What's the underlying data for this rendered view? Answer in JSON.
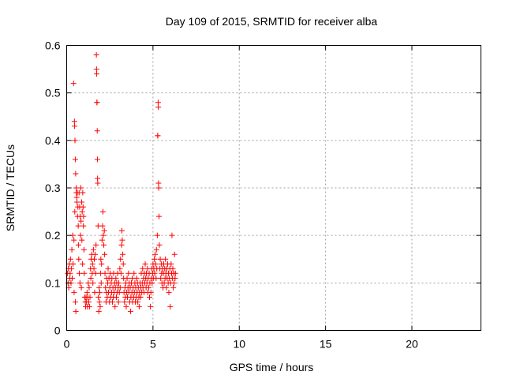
{
  "chart_data": {
    "type": "scatter",
    "title": "Day 109 of 2015, SRMTID for receiver alba",
    "xlabel": "GPS time / hours",
    "ylabel": "SRMTID / TECUs",
    "xlim": [
      0,
      24
    ],
    "ylim": [
      0,
      0.6
    ],
    "xticks": [
      0,
      5,
      10,
      15,
      20
    ],
    "xtick_labels": [
      "0",
      "5",
      "10",
      "15",
      "20"
    ],
    "yticks": [
      0,
      0.1,
      0.2,
      0.3,
      0.4,
      0.5,
      0.6
    ],
    "ytick_labels": [
      "0",
      "0.1",
      "0.2",
      "0.3",
      "0.4",
      "0.5",
      "0.6"
    ],
    "grid": true,
    "marker": "+",
    "marker_color": "#ff0000",
    "series": [
      {
        "name": "SRMTID",
        "points": [
          [
            0.05,
            0.12
          ],
          [
            0.08,
            0.1
          ],
          [
            0.1,
            0.13
          ],
          [
            0.12,
            0.09
          ],
          [
            0.15,
            0.14
          ],
          [
            0.18,
            0.11
          ],
          [
            0.2,
            0.12
          ],
          [
            0.22,
            0.15
          ],
          [
            0.25,
            0.1
          ],
          [
            0.28,
            0.13
          ],
          [
            0.3,
            0.17
          ],
          [
            0.32,
            0.11
          ],
          [
            0.35,
            0.2
          ],
          [
            0.37,
            0.14
          ],
          [
            0.4,
            0.52
          ],
          [
            0.42,
            0.19
          ],
          [
            0.43,
            0.08
          ],
          [
            0.45,
            0.44
          ],
          [
            0.46,
            0.43
          ],
          [
            0.47,
            0.25
          ],
          [
            0.48,
            0.4
          ],
          [
            0.5,
            0.36
          ],
          [
            0.5,
            0.06
          ],
          [
            0.52,
            0.33
          ],
          [
            0.53,
            0.04
          ],
          [
            0.55,
            0.3
          ],
          [
            0.56,
            0.29
          ],
          [
            0.58,
            0.28
          ],
          [
            0.6,
            0.27
          ],
          [
            0.62,
            0.29
          ],
          [
            0.63,
            0.24
          ],
          [
            0.65,
            0.26
          ],
          [
            0.67,
            0.22
          ],
          [
            0.68,
            0.18
          ],
          [
            0.7,
            0.15
          ],
          [
            0.72,
            0.29
          ],
          [
            0.73,
            0.12
          ],
          [
            0.75,
            0.26
          ],
          [
            0.77,
            0.1
          ],
          [
            0.78,
            0.24
          ],
          [
            0.8,
            0.2
          ],
          [
            0.82,
            0.3
          ],
          [
            0.83,
            0.23
          ],
          [
            0.85,
            0.09
          ],
          [
            0.87,
            0.27
          ],
          [
            0.88,
            0.19
          ],
          [
            0.9,
            0.25
          ],
          [
            0.92,
            0.14
          ],
          [
            0.93,
            0.29
          ],
          [
            0.95,
            0.26
          ],
          [
            0.97,
            0.22
          ],
          [
            0.98,
            0.24
          ],
          [
            1.0,
            0.17
          ],
          [
            1.02,
            0.12
          ],
          [
            1.05,
            0.07
          ],
          [
            1.08,
            0.06
          ],
          [
            1.1,
            0.05
          ],
          [
            1.12,
            0.07
          ],
          [
            1.15,
            0.06
          ],
          [
            1.18,
            0.08
          ],
          [
            1.2,
            0.05
          ],
          [
            1.22,
            0.07
          ],
          [
            1.25,
            0.1
          ],
          [
            1.28,
            0.06
          ],
          [
            1.3,
            0.09
          ],
          [
            1.32,
            0.05
          ],
          [
            1.35,
            0.07
          ],
          [
            1.38,
            0.13
          ],
          [
            1.4,
            0.11
          ],
          [
            1.42,
            0.15
          ],
          [
            1.45,
            0.16
          ],
          [
            1.48,
            0.12
          ],
          [
            1.5,
            0.14
          ],
          [
            1.52,
            0.1
          ],
          [
            1.55,
            0.17
          ],
          [
            1.58,
            0.13
          ],
          [
            1.6,
            0.15
          ],
          [
            1.62,
            0.08
          ],
          [
            1.65,
            0.16
          ],
          [
            1.68,
            0.12
          ],
          [
            1.7,
            0.18
          ],
          [
            1.72,
            0.58
          ],
          [
            1.73,
            0.55
          ],
          [
            1.74,
            0.54
          ],
          [
            1.75,
            0.48
          ],
          [
            1.76,
            0.48
          ],
          [
            1.77,
            0.42
          ],
          [
            1.78,
            0.36
          ],
          [
            1.79,
            0.32
          ],
          [
            1.8,
            0.31
          ],
          [
            1.82,
            0.22
          ],
          [
            1.84,
            0.07
          ],
          [
            1.86,
            0.04
          ],
          [
            1.88,
            0.09
          ],
          [
            1.9,
            0.06
          ],
          [
            1.92,
            0.08
          ],
          [
            1.94,
            0.05
          ],
          [
            1.96,
            0.12
          ],
          [
            1.98,
            0.15
          ],
          [
            2.0,
            0.1
          ],
          [
            2.02,
            0.14
          ],
          [
            2.05,
            0.19
          ],
          [
            2.08,
            0.22
          ],
          [
            2.1,
            0.25
          ],
          [
            2.12,
            0.2
          ],
          [
            2.15,
            0.18
          ],
          [
            2.18,
            0.21
          ],
          [
            2.2,
            0.16
          ],
          [
            2.22,
            0.12
          ],
          [
            2.25,
            0.09
          ],
          [
            2.28,
            0.06
          ],
          [
            2.3,
            0.08
          ],
          [
            2.32,
            0.11
          ],
          [
            2.35,
            0.07
          ],
          [
            2.38,
            0.1
          ],
          [
            2.4,
            0.13
          ],
          [
            2.42,
            0.08
          ],
          [
            2.45,
            0.11
          ],
          [
            2.48,
            0.06
          ],
          [
            2.5,
            0.09
          ],
          [
            2.52,
            0.12
          ],
          [
            2.55,
            0.07
          ],
          [
            2.58,
            0.1
          ],
          [
            2.6,
            0.08
          ],
          [
            2.62,
            0.11
          ],
          [
            2.65,
            0.06
          ],
          [
            2.68,
            0.09
          ],
          [
            2.7,
            0.07
          ],
          [
            2.72,
            0.12
          ],
          [
            2.75,
            0.08
          ],
          [
            2.78,
            0.1
          ],
          [
            2.8,
            0.05
          ],
          [
            2.82,
            0.09
          ],
          [
            2.85,
            0.11
          ],
          [
            2.88,
            0.07
          ],
          [
            2.9,
            0.1
          ],
          [
            2.92,
            0.08
          ],
          [
            2.95,
            0.12
          ],
          [
            2.98,
            0.09
          ],
          [
            3.0,
            0.06
          ],
          [
            3.02,
            0.1
          ],
          [
            3.05,
            0.08
          ],
          [
            3.08,
            0.13
          ],
          [
            3.1,
            0.09
          ],
          [
            3.12,
            0.15
          ],
          [
            3.15,
            0.12
          ],
          [
            3.18,
            0.18
          ],
          [
            3.2,
            0.21
          ],
          [
            3.22,
            0.19
          ],
          [
            3.25,
            0.16
          ],
          [
            3.28,
            0.14
          ],
          [
            3.3,
            0.11
          ],
          [
            3.32,
            0.08
          ],
          [
            3.35,
            0.06
          ],
          [
            3.38,
            0.09
          ],
          [
            3.4,
            0.07
          ],
          [
            3.42,
            0.1
          ],
          [
            3.45,
            0.05
          ],
          [
            3.48,
            0.08
          ],
          [
            3.5,
            0.11
          ],
          [
            3.52,
            0.07
          ],
          [
            3.55,
            0.09
          ],
          [
            3.58,
            0.12
          ],
          [
            3.6,
            0.08
          ],
          [
            3.62,
            0.1
          ],
          [
            3.65,
            0.06
          ],
          [
            3.68,
            0.09
          ],
          [
            3.7,
            0.04
          ],
          [
            3.72,
            0.07
          ],
          [
            3.75,
            0.1
          ],
          [
            3.78,
            0.08
          ],
          [
            3.8,
            0.11
          ],
          [
            3.82,
            0.06
          ],
          [
            3.85,
            0.09
          ],
          [
            3.88,
            0.07
          ],
          [
            3.9,
            0.12
          ],
          [
            3.92,
            0.08
          ],
          [
            3.95,
            0.1
          ],
          [
            3.98,
            0.06
          ],
          [
            4.0,
            0.09
          ],
          [
            4.02,
            0.07
          ],
          [
            4.05,
            0.11
          ],
          [
            4.08,
            0.08
          ],
          [
            4.1,
            0.1
          ],
          [
            4.12,
            0.06
          ],
          [
            4.15,
            0.09
          ],
          [
            4.18,
            0.07
          ],
          [
            4.2,
            0.05
          ],
          [
            4.22,
            0.08
          ],
          [
            4.25,
            0.1
          ],
          [
            4.28,
            0.07
          ],
          [
            4.3,
            0.09
          ],
          [
            4.32,
            0.12
          ],
          [
            4.35,
            0.08
          ],
          [
            4.38,
            0.1
          ],
          [
            4.4,
            0.13
          ],
          [
            4.42,
            0.09
          ],
          [
            4.45,
            0.11
          ],
          [
            4.48,
            0.08
          ],
          [
            4.5,
            0.12
          ],
          [
            4.52,
            0.1
          ],
          [
            4.55,
            0.14
          ],
          [
            4.58,
            0.11
          ],
          [
            4.6,
            0.09
          ],
          [
            4.62,
            0.12
          ],
          [
            4.65,
            0.1
          ],
          [
            4.68,
            0.13
          ],
          [
            4.7,
            0.08
          ],
          [
            4.72,
            0.11
          ],
          [
            4.75,
            0.09
          ],
          [
            4.78,
            0.12
          ],
          [
            4.8,
            0.07
          ],
          [
            4.82,
            0.1
          ],
          [
            4.85,
            0.05
          ],
          [
            4.88,
            0.08
          ],
          [
            4.9,
            0.11
          ],
          [
            4.92,
            0.13
          ],
          [
            4.95,
            0.1
          ],
          [
            4.98,
            0.12
          ],
          [
            5.0,
            0.14
          ],
          [
            5.02,
            0.11
          ],
          [
            5.05,
            0.13
          ],
          [
            5.08,
            0.15
          ],
          [
            5.1,
            0.12
          ],
          [
            5.12,
            0.16
          ],
          [
            5.15,
            0.14
          ],
          [
            5.18,
            0.11
          ],
          [
            5.2,
            0.17
          ],
          [
            5.22,
            0.13
          ],
          [
            5.25,
            0.2
          ],
          [
            5.27,
            0.41
          ],
          [
            5.28,
            0.41
          ],
          [
            5.3,
            0.48
          ],
          [
            5.31,
            0.47
          ],
          [
            5.32,
            0.31
          ],
          [
            5.33,
            0.3
          ],
          [
            5.35,
            0.24
          ],
          [
            5.37,
            0.18
          ],
          [
            5.4,
            0.13
          ],
          [
            5.42,
            0.15
          ],
          [
            5.45,
            0.11
          ],
          [
            5.48,
            0.14
          ],
          [
            5.5,
            0.12
          ],
          [
            5.52,
            0.1
          ],
          [
            5.55,
            0.13
          ],
          [
            5.58,
            0.09
          ],
          [
            5.6,
            0.12
          ],
          [
            5.62,
            0.14
          ],
          [
            5.65,
            0.1
          ],
          [
            5.68,
            0.13
          ],
          [
            5.7,
            0.11
          ],
          [
            5.72,
            0.15
          ],
          [
            5.75,
            0.12
          ],
          [
            5.78,
            0.09
          ],
          [
            5.8,
            0.13
          ],
          [
            5.82,
            0.11
          ],
          [
            5.85,
            0.14
          ],
          [
            5.88,
            0.1
          ],
          [
            5.9,
            0.12
          ],
          [
            5.92,
            0.08
          ],
          [
            5.95,
            0.11
          ],
          [
            5.98,
            0.13
          ],
          [
            6.0,
            0.05
          ],
          [
            6.02,
            0.1
          ],
          [
            6.05,
            0.14
          ],
          [
            6.08,
            0.12
          ],
          [
            6.1,
            0.2
          ],
          [
            6.12,
            0.11
          ],
          [
            6.15,
            0.13
          ],
          [
            6.18,
            0.09
          ],
          [
            6.2,
            0.12
          ],
          [
            6.22,
            0.1
          ],
          [
            6.25,
            0.16
          ],
          [
            6.28,
            0.11
          ],
          [
            6.3,
            0.12
          ]
        ]
      }
    ]
  }
}
